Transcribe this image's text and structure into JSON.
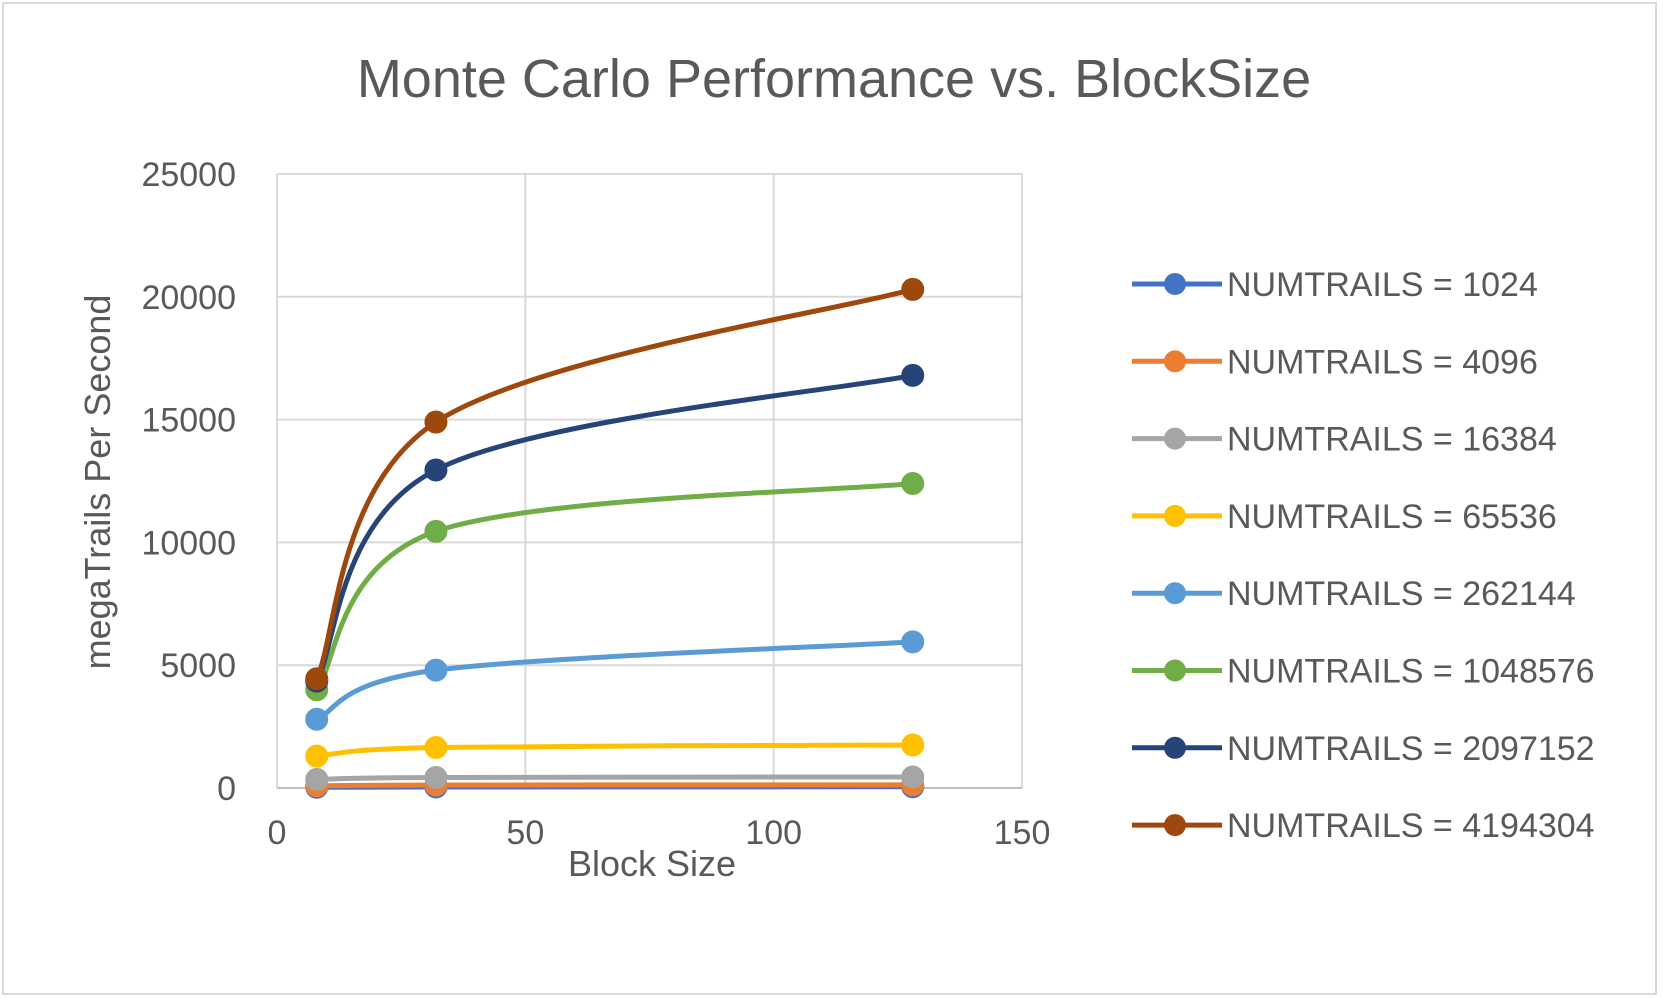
{
  "chart_data": {
    "type": "scatter",
    "title": "Monte Carlo Performance vs. BlockSize",
    "xlabel": "Block Size",
    "ylabel": "megaTrails Per Second",
    "xlim": [
      0,
      150
    ],
    "ylim": [
      0,
      25000
    ],
    "x_ticks": [
      0,
      50,
      100,
      150
    ],
    "y_ticks": [
      0,
      5000,
      10000,
      15000,
      20000,
      25000
    ],
    "grid": true,
    "legend_position": "right",
    "x": [
      8,
      32,
      128
    ],
    "series": [
      {
        "name": "NUMTRAILS = 1024",
        "color": "#4472C4",
        "values": [
          30,
          40,
          50
        ]
      },
      {
        "name": "NUMTRAILS = 4096",
        "color": "#ED7D31",
        "values": [
          90,
          120,
          130
        ]
      },
      {
        "name": "NUMTRAILS = 16384",
        "color": "#A5A5A5",
        "values": [
          350,
          430,
          450
        ]
      },
      {
        "name": "NUMTRAILS = 65536",
        "color": "#FFC000",
        "values": [
          1300,
          1650,
          1750
        ]
      },
      {
        "name": "NUMTRAILS = 262144",
        "color": "#5B9BD5",
        "values": [
          2800,
          4800,
          5950
        ]
      },
      {
        "name": "NUMTRAILS = 1048576",
        "color": "#70AD47",
        "values": [
          4000,
          10450,
          12400
        ]
      },
      {
        "name": "NUMTRAILS = 2097152",
        "color": "#264478",
        "values": [
          4350,
          12950,
          16800
        ]
      },
      {
        "name": "NUMTRAILS = 4194304",
        "color": "#9E480E",
        "values": [
          4450,
          14900,
          20300
        ]
      }
    ]
  }
}
